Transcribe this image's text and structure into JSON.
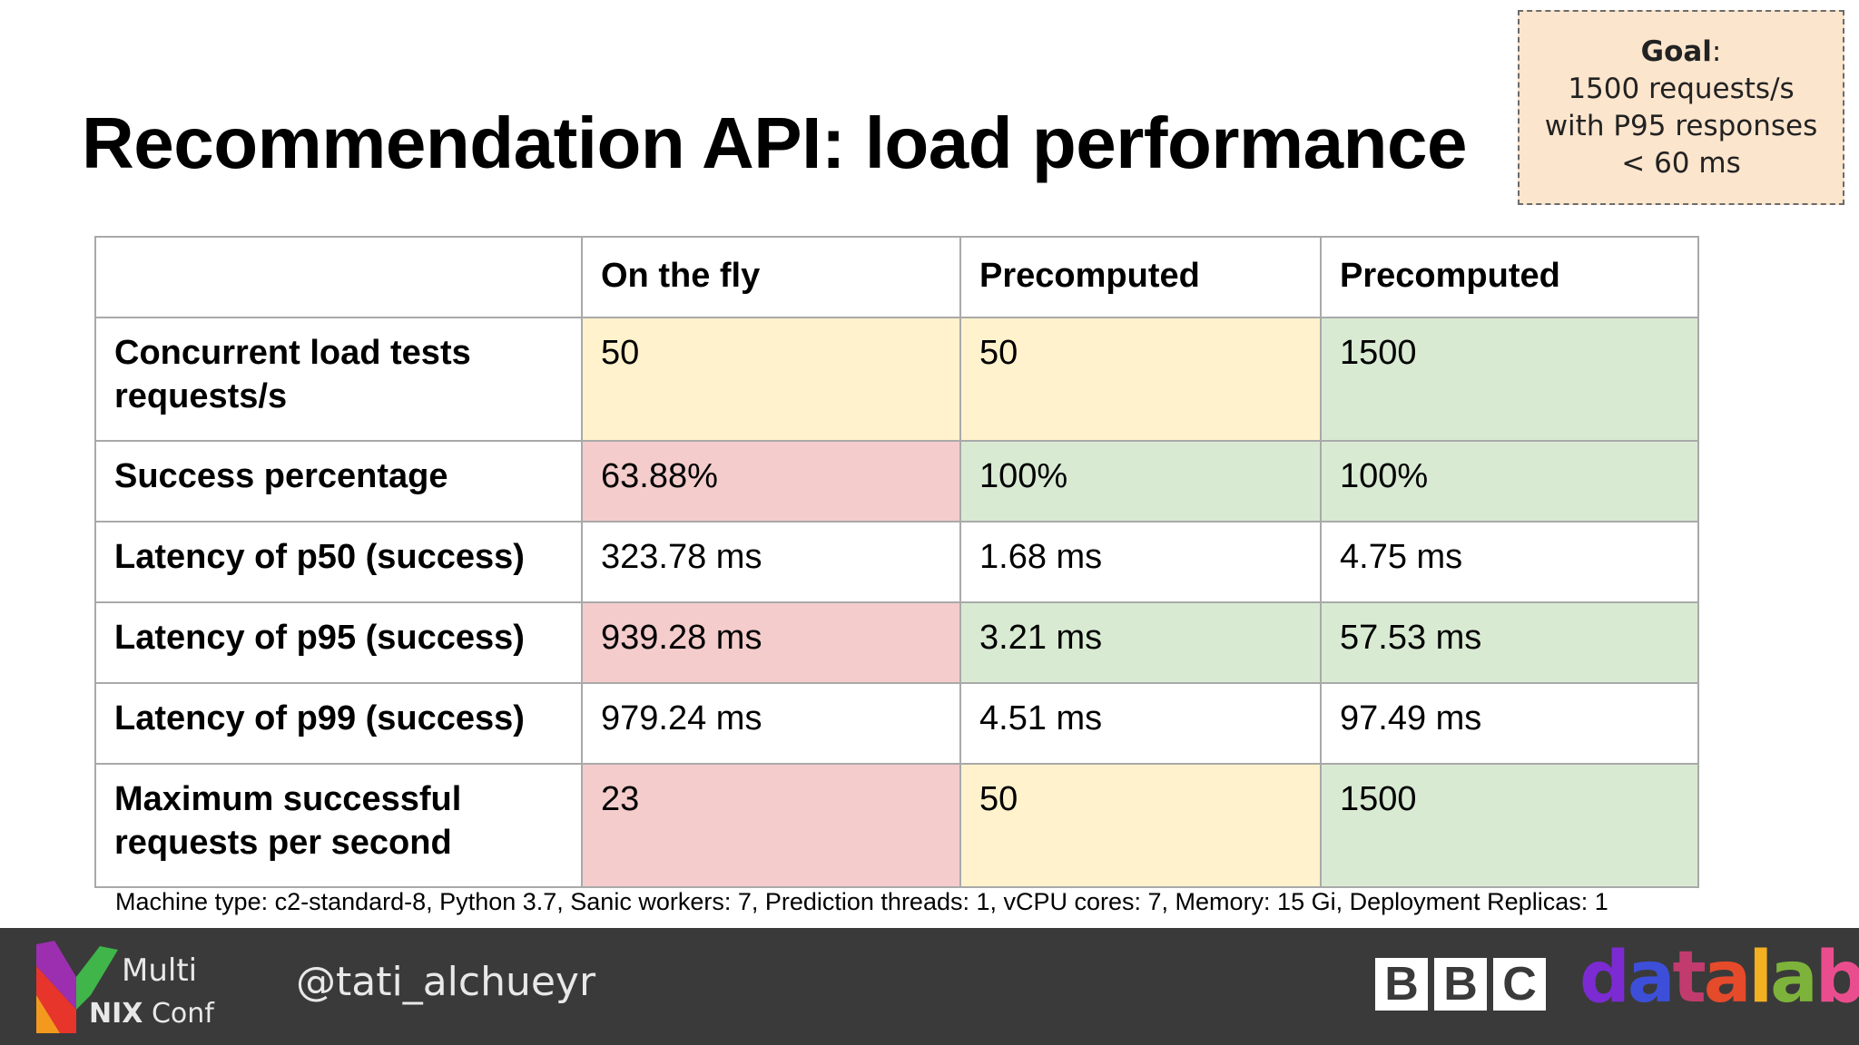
{
  "slide": {
    "title": "Recommendation API: load performance"
  },
  "goal": {
    "label": "Goal",
    "suffix": ":",
    "line1": "1500 requests/s",
    "line2": "with P95 responses",
    "line3": "< 60 ms"
  },
  "table": {
    "headers": [
      "",
      "On the fly",
      "Precomputed",
      "Precomputed"
    ],
    "rows": [
      {
        "label_lines": [
          "Concurrent load tests",
          "requests/s"
        ],
        "values": [
          "50",
          "50",
          "1500"
        ],
        "colors": [
          "yellow",
          "yellow",
          "green"
        ]
      },
      {
        "label": "Success percentage",
        "values": [
          "63.88%",
          "100%",
          "100%"
        ],
        "colors": [
          "red",
          "green",
          "green"
        ]
      },
      {
        "label": "Latency of p50 (success)",
        "values": [
          "323.78 ms",
          "1.68 ms",
          "4.75 ms"
        ],
        "colors": [
          "white",
          "white",
          "white"
        ]
      },
      {
        "label": "Latency of p95 (success)",
        "values": [
          "939.28 ms",
          "3.21 ms",
          "57.53 ms"
        ],
        "colors": [
          "red",
          "green",
          "green"
        ]
      },
      {
        "label": "Latency of p99 (success)",
        "values": [
          "979.24 ms",
          "4.51 ms",
          "97.49 ms"
        ],
        "colors": [
          "white",
          "white",
          "white"
        ]
      },
      {
        "label_lines": [
          "Maximum successful",
          "requests per second"
        ],
        "values": [
          "23",
          "50",
          "1500"
        ],
        "colors": [
          "red",
          "yellow",
          "green"
        ]
      }
    ]
  },
  "footnote": "Machine type: c2-standard-8, Python 3.7, Sanic workers: 7, Prediction threads: 1, vCPU cores: 7, Memory: 15 Gi, Deployment Replicas: 1",
  "footer": {
    "conf_line1": "Multi",
    "conf_nix": "NIX",
    "conf_conf": "Conf",
    "handle": "@tati_alchueyr",
    "bbc_letters": [
      "B",
      "B",
      "C"
    ],
    "datalab_letters": [
      "d",
      "a",
      "t",
      "a",
      "l",
      "a",
      "b"
    ]
  },
  "colors": {
    "yellow": "#fff2cc",
    "red": "#f4cccc",
    "green": "#d9ead3",
    "goal_bg": "#fce5cd",
    "footer_bg": "#3a3a3a"
  }
}
